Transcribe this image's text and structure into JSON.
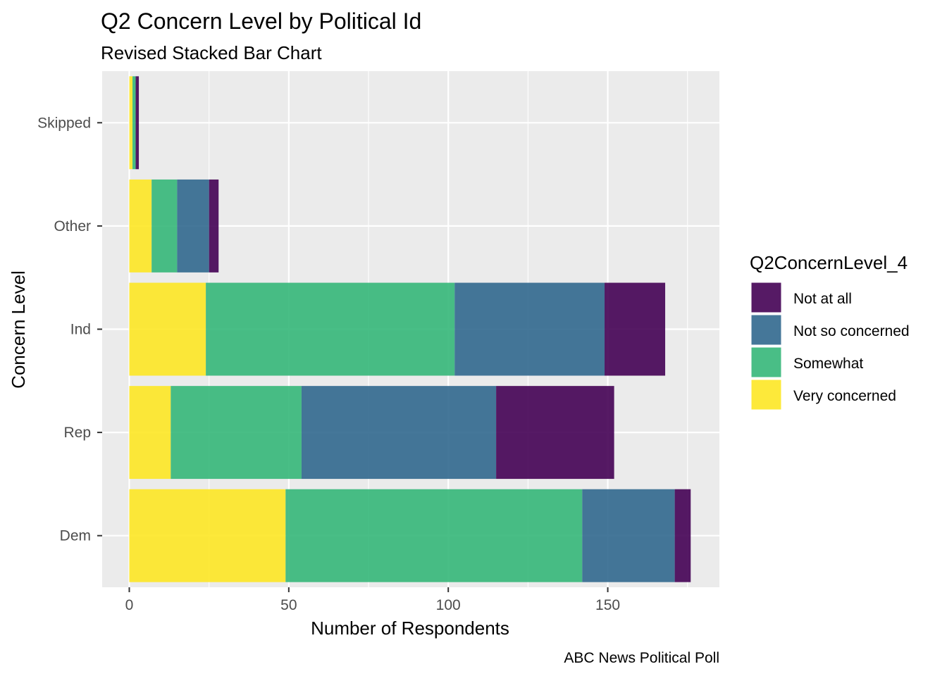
{
  "chart_data": {
    "type": "bar",
    "orientation": "horizontal",
    "stacked": true,
    "title": "Q2 Concern Level by Political Id",
    "subtitle": "Revised Stacked Bar Chart",
    "xlabel": "Number of Respondents",
    "ylabel": "Concern Level",
    "caption": "ABC News Political Poll",
    "categories": [
      "Dem",
      "Rep",
      "Ind",
      "Other",
      "Skipped"
    ],
    "xlim": [
      -8.5,
      185
    ],
    "xticks": [
      0,
      50,
      100,
      150
    ],
    "grid": true,
    "legend": {
      "title": "Q2ConcernLevel_4",
      "placement": "right",
      "items": [
        "Not at all",
        "Not so concerned",
        "Somewhat",
        "Very concerned"
      ]
    },
    "stack_order": [
      "Very concerned",
      "Somewhat",
      "Not so concerned",
      "Not at all"
    ],
    "series": [
      {
        "name": "Very concerned",
        "color": "#FDE725",
        "values": [
          49,
          13,
          24,
          7,
          1
        ]
      },
      {
        "name": "Somewhat",
        "color": "#35B779",
        "values": [
          93,
          41,
          78,
          8,
          1
        ]
      },
      {
        "name": "Not so concerned",
        "color": "#31688E",
        "values": [
          29,
          61,
          47,
          10,
          0
        ]
      },
      {
        "name": "Not at all",
        "color": "#440154",
        "values": [
          5,
          37,
          19,
          3,
          1
        ]
      }
    ],
    "bar_opacity": 0.9,
    "panel_background": "#EBEBEB",
    "grid_color": "#FFFFFF"
  }
}
